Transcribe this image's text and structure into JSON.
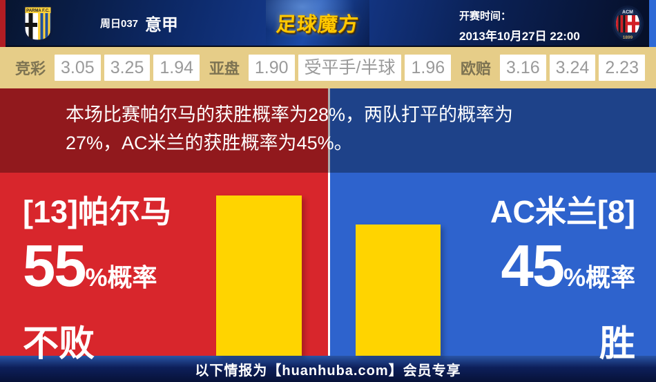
{
  "header": {
    "home_crest": "parma-crest",
    "home_crest_banner": "PARMA F.C.",
    "match_code": "周日037",
    "league": "意甲",
    "brand": "足球魔方",
    "kickoff_label": "开赛时间：",
    "kickoff_time": "2013年10月27日 22:00",
    "away_crest": "ac-milan-crest",
    "away_crest_top": "ACM",
    "away_crest_year": "1899"
  },
  "odds": {
    "groups": [
      {
        "label": "竞彩",
        "values": [
          "3.05",
          "3.25",
          "1.94"
        ]
      },
      {
        "label": "亚盘",
        "values": [
          "1.90",
          "受平手/半球",
          "1.96"
        ]
      },
      {
        "label": "欧赔",
        "values": [
          "3.16",
          "3.24",
          "2.23"
        ]
      }
    ]
  },
  "summary": {
    "lines": [
      "本场比赛帕尔马的获胜概率为28%，两队打平的概率为",
      "27%，AC米兰的获胜概率为45%。"
    ],
    "home_win_pct": "28%",
    "draw_pct": "27%",
    "away_win_pct": "45%"
  },
  "prediction": {
    "home": {
      "team": "[13]帕尔马",
      "percent": "55",
      "suffix": "%概率",
      "outcome": "不败"
    },
    "away": {
      "team": "AC米兰[8]",
      "percent": "45",
      "suffix": "%概率",
      "outcome": "胜"
    }
  },
  "chart_data": {
    "type": "bar",
    "categories": [
      "帕尔马 不败",
      "AC米兰 胜"
    ],
    "values": [
      55,
      45
    ],
    "unit": "%",
    "bar_color": "#ffd400",
    "ylim": [
      0,
      60
    ],
    "grid": false,
    "legend": false
  },
  "footer": {
    "text": "以下情报为【huanhuba.com】会员专享"
  },
  "colors": {
    "home_red": "#d8262c",
    "away_blue": "#2e63cd",
    "bar_yellow": "#ffd400",
    "odds_bg": "#e6cd88",
    "summary_dark_red": "#8e2025",
    "summary_dark_navy": "#1d3c7c",
    "header_navy": "#0d2a6a",
    "brand_gold": "#ffc800",
    "footer_navy": "#0d1f5a"
  }
}
